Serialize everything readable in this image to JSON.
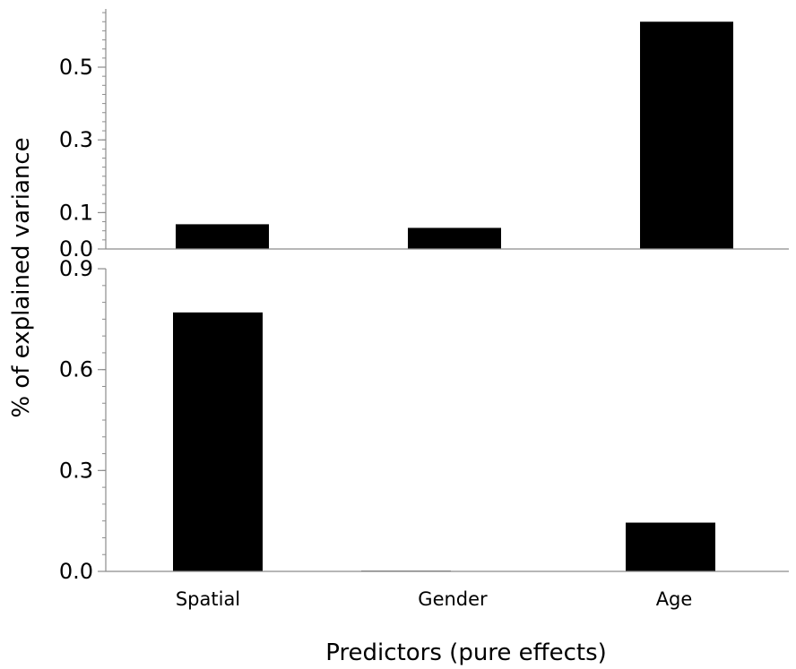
{
  "chart_data": [
    {
      "type": "bar",
      "categories": [
        "Spatial",
        "Gender",
        "Age"
      ],
      "values": [
        0.068,
        0.058,
        0.625
      ],
      "ylim": [
        0.0,
        0.6
      ],
      "ytick_labels": [
        "0.0",
        "0.1",
        "0.3",
        "0.5"
      ],
      "yticks": [
        0.0,
        0.1,
        0.3,
        0.5
      ],
      "grid": false,
      "color": "#000000"
    },
    {
      "type": "bar",
      "categories": [
        "Spatial",
        "Gender",
        "Age"
      ],
      "values": [
        0.77,
        0.002,
        0.145
      ],
      "ylim": [
        0.0,
        0.9
      ],
      "ytick_labels": [
        "0.0",
        "0.3",
        "0.6",
        "0.9"
      ],
      "yticks": [
        0.0,
        0.3,
        0.6,
        0.9
      ],
      "grid": false,
      "color": "#000000"
    }
  ],
  "axes": {
    "ylabel": "% of explained variance",
    "xlabel": "Predictors (pure effects)"
  }
}
